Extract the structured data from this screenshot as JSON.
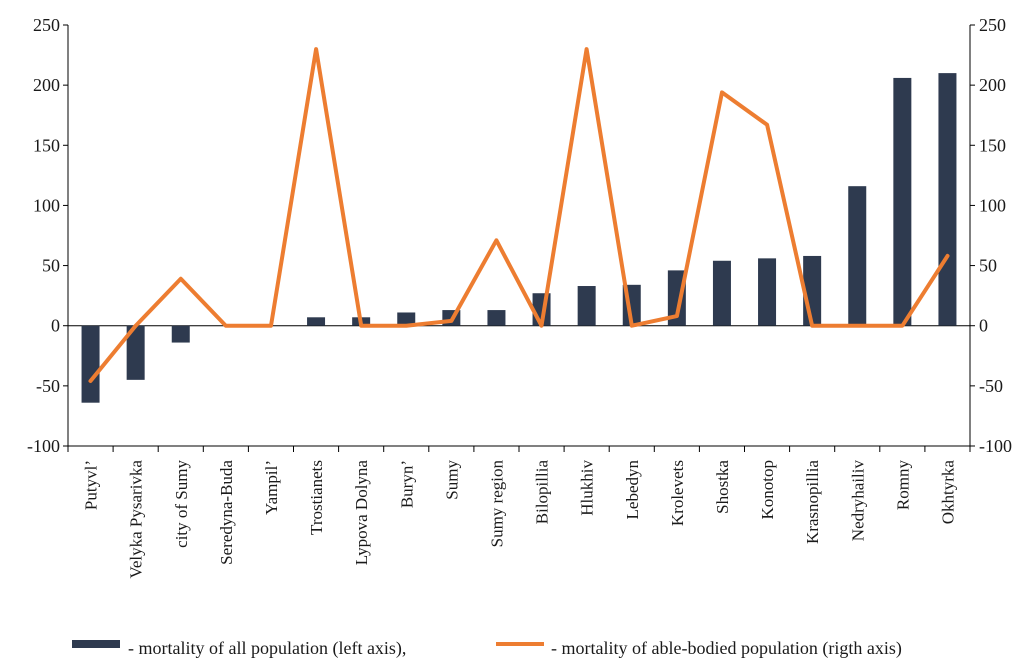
{
  "chart_data": {
    "type": "bar",
    "categories": [
      "Putyvl’",
      "Velyka Pysarivka",
      "city of Sumy",
      "Seredyna-Buda",
      "Yampil’",
      "Trostianets",
      "Lypova Dolyna",
      "Buryn’",
      "Sumy",
      "Sumy region",
      "Bilopillia",
      "Hlukhiv",
      "Lebedyn",
      "Krolevets",
      "Shostka",
      "Konotop",
      "Krasnopillia",
      "Nedryhailiv",
      "Romny",
      "Okhtyrka"
    ],
    "series": [
      {
        "name": "- mortality of all population (left axis),",
        "type": "bar",
        "axis": "left",
        "color": "#2e3a4f",
        "values": [
          -64,
          -45,
          -14,
          0,
          0,
          7,
          7,
          11,
          13,
          13,
          27,
          33,
          34,
          46,
          54,
          56,
          58,
          116,
          206,
          210
        ]
      },
      {
        "name": "- mortality of able-bodied population (rigth axis)",
        "type": "line",
        "axis": "right",
        "color": "#ed7d31",
        "values": [
          -46,
          0,
          39,
          0,
          0,
          230,
          0,
          0,
          4,
          71,
          0,
          230,
          0,
          8,
          194,
          167,
          0,
          0,
          0,
          58
        ]
      }
    ],
    "y_left": {
      "min": -100,
      "max": 250,
      "ticks": [
        "250",
        "200",
        "150",
        "100",
        "50",
        "0",
        "-50",
        "-100"
      ]
    },
    "y_right": {
      "min": -100,
      "max": 250,
      "ticks": [
        "250",
        "200",
        "150",
        "100",
        "50",
        "0",
        "-50",
        "-100"
      ]
    },
    "grid": false,
    "legend": "bottom"
  }
}
